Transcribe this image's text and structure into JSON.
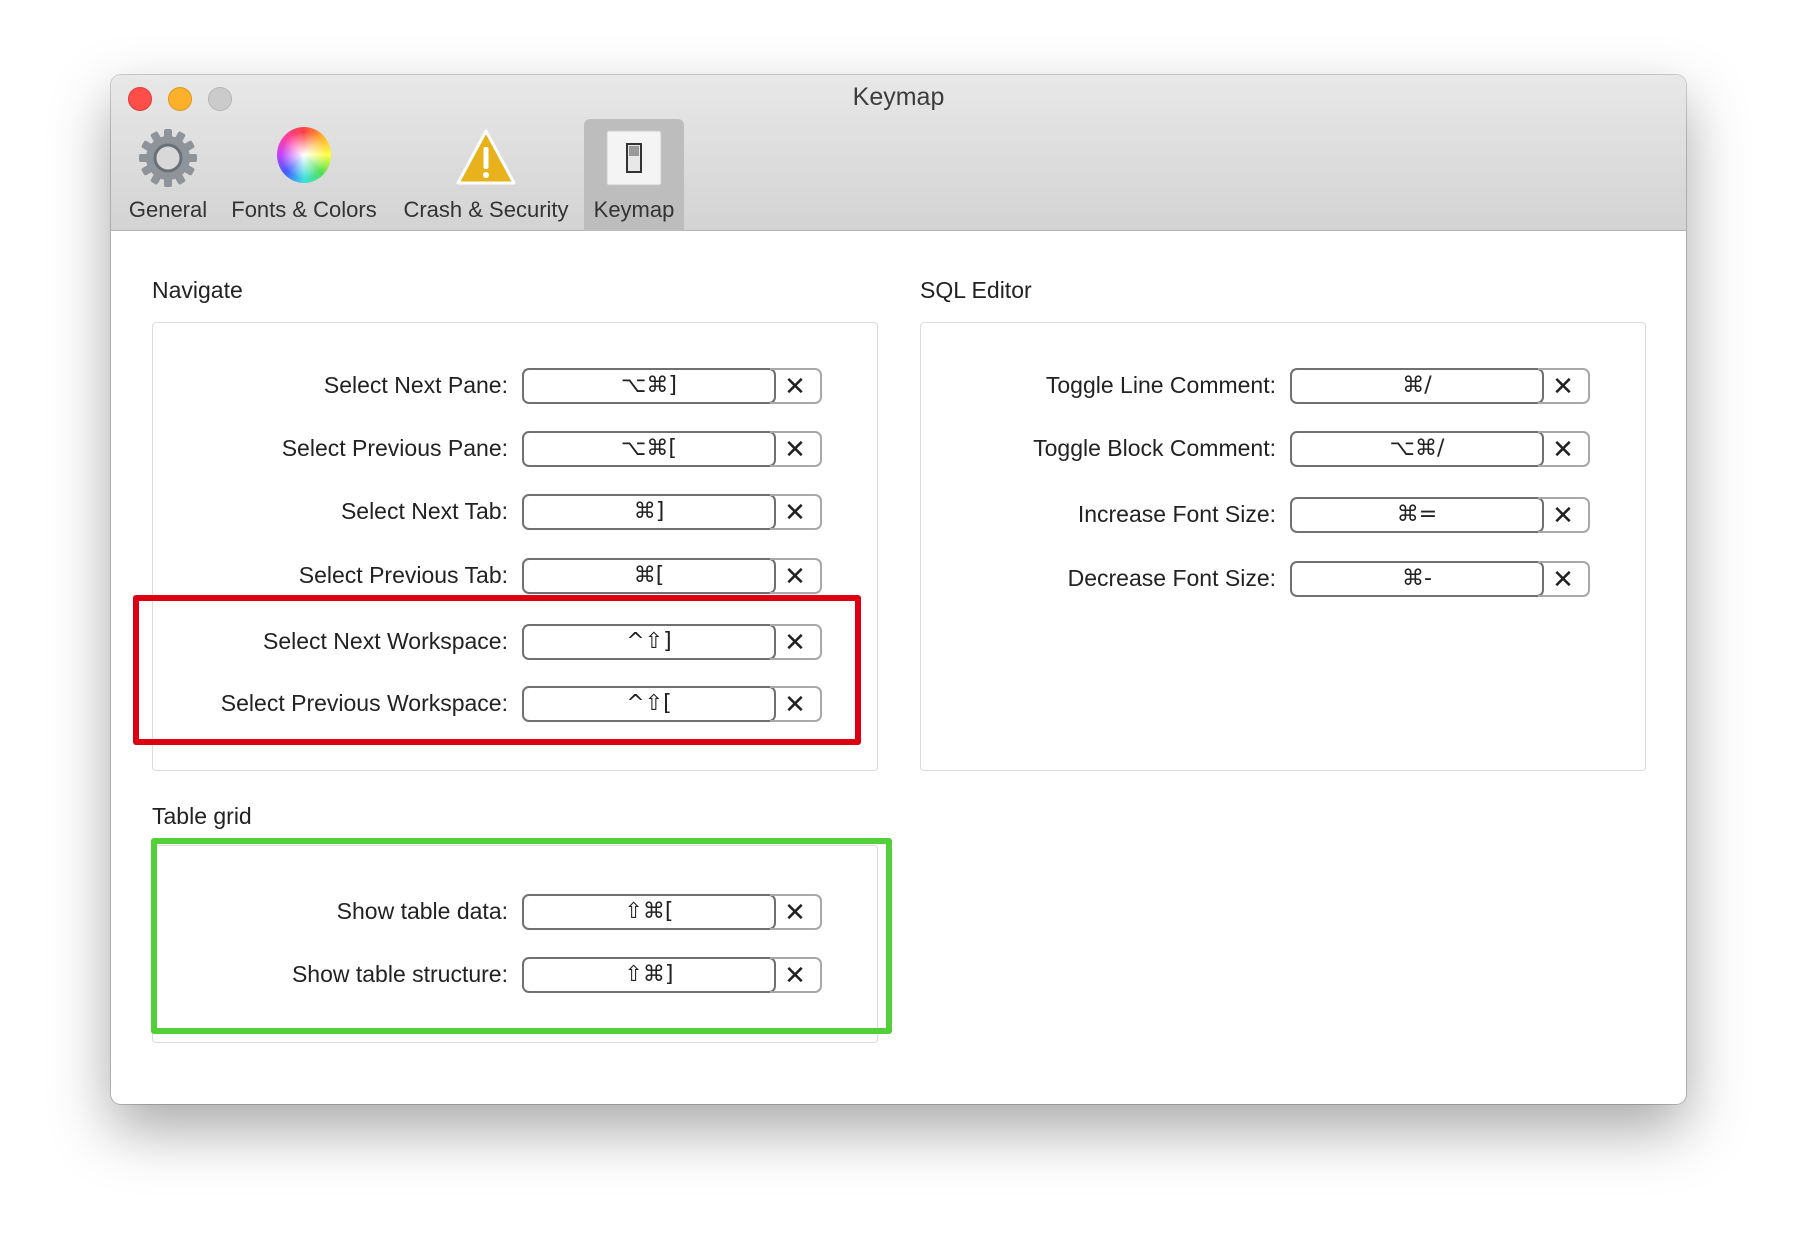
{
  "window": {
    "title": "Keymap"
  },
  "toolbar": {
    "items": [
      {
        "label": "General",
        "icon": "gear-icon"
      },
      {
        "label": "Fonts & Colors",
        "icon": "color-wheel-icon"
      },
      {
        "label": "Crash & Security",
        "icon": "warning-icon"
      },
      {
        "label": "Keymap",
        "icon": "switch-icon",
        "active": true
      }
    ]
  },
  "navigate": {
    "title": "Navigate",
    "rows": [
      {
        "label": "Select Next Pane:",
        "shortcut": "⌥⌘]"
      },
      {
        "label": "Select Previous Pane:",
        "shortcut": "⌥⌘["
      },
      {
        "label": "Select Next Tab:",
        "shortcut": "⌘]"
      },
      {
        "label": "Select Previous Tab:",
        "shortcut": "⌘["
      },
      {
        "label": "Select Next Workspace:",
        "shortcut": "^⇧]"
      },
      {
        "label": "Select Previous Workspace:",
        "shortcut": "^⇧["
      }
    ]
  },
  "sql_editor": {
    "title": "SQL Editor",
    "rows": [
      {
        "label": "Toggle Line Comment:",
        "shortcut": "⌘/"
      },
      {
        "label": "Toggle Block Comment:",
        "shortcut": "⌥⌘/"
      },
      {
        "label": "Increase Font Size:",
        "shortcut": "⌘="
      },
      {
        "label": "Decrease Font Size:",
        "shortcut": "⌘-"
      }
    ]
  },
  "table_grid": {
    "title": "Table grid",
    "rows": [
      {
        "label": "Show table data:",
        "shortcut": "⇧⌘["
      },
      {
        "label": "Show table structure:",
        "shortcut": "⇧⌘]"
      }
    ]
  },
  "clear_glyph": "✕",
  "colors": {
    "highlight_red": "#dc0012",
    "highlight_green": "#52d03a"
  }
}
